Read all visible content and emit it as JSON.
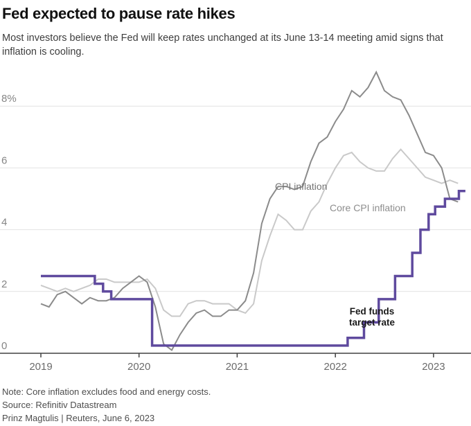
{
  "header": {
    "title": "Fed expected to pause rate hikes",
    "subtitle": "Most investors believe the Fed will keep rates unchanged at its June 13-14 meeting amid signs that inflation is cooling."
  },
  "footer": {
    "note": "Note: Core inflation excludes food and energy costs.",
    "source": "Source: Refinitiv Datastream",
    "byline": "Prinz Magtulis |  Reuters, June 6, 2023"
  },
  "chart_data": {
    "type": "line",
    "title": "Fed expected to pause rate hikes",
    "x_unit": "months since January 2019, monthly data through April-May 2023",
    "x_tick_labels": [
      "2019",
      "2020",
      "2021",
      "2022",
      "2023"
    ],
    "x_tick_months": [
      0,
      12,
      24,
      36,
      48
    ],
    "y_tick_labels": [
      "8%",
      "6",
      "4",
      "2",
      "0"
    ],
    "y_tick_values": [
      8,
      6,
      4,
      2,
      0
    ],
    "ylim": [
      0,
      9.3
    ],
    "grid": "horizontal",
    "legend_position": "inline-annotations",
    "annotations": {
      "cpi": "CPI inflation",
      "core": "Core CPI inflation",
      "fed": "Fed funds\ntarget rate"
    },
    "series": [
      {
        "name": "Core CPI inflation",
        "style": "line",
        "color": "#c9c9c9",
        "width": 2,
        "start": "Jan 2019",
        "values": [
          2.2,
          2.1,
          2.0,
          2.1,
          2.0,
          2.1,
          2.2,
          2.4,
          2.4,
          2.3,
          2.3,
          2.3,
          2.3,
          2.4,
          2.1,
          1.4,
          1.2,
          1.2,
          1.6,
          1.7,
          1.7,
          1.6,
          1.6,
          1.6,
          1.4,
          1.3,
          1.6,
          3.0,
          3.8,
          4.5,
          4.3,
          4.0,
          4.0,
          4.6,
          4.9,
          5.5,
          6.0,
          6.4,
          6.5,
          6.2,
          6.0,
          5.9,
          5.9,
          6.3,
          6.6,
          6.3,
          6.0,
          5.7,
          5.6,
          5.5,
          5.6,
          5.5
        ]
      },
      {
        "name": "CPI inflation",
        "style": "line",
        "color": "#8b8b8b",
        "width": 2,
        "start": "Jan 2019",
        "values": [
          1.6,
          1.5,
          1.9,
          2.0,
          1.8,
          1.6,
          1.8,
          1.7,
          1.7,
          1.8,
          2.1,
          2.3,
          2.5,
          2.3,
          1.5,
          0.3,
          0.1,
          0.6,
          1.0,
          1.3,
          1.4,
          1.2,
          1.2,
          1.4,
          1.4,
          1.7,
          2.6,
          4.2,
          5.0,
          5.4,
          5.4,
          5.3,
          5.4,
          6.2,
          6.8,
          7.0,
          7.5,
          7.9,
          8.5,
          8.3,
          8.6,
          9.1,
          8.5,
          8.3,
          8.2,
          7.7,
          7.1,
          6.5,
          6.4,
          6.0,
          5.0,
          4.9
        ]
      },
      {
        "name": "Fed funds target rate",
        "style": "step",
        "color": "#5f4a9e",
        "width": 3.5,
        "start": "Jan 2019",
        "end_month": 51.9,
        "points": [
          [
            0,
            2.5
          ],
          [
            6.6,
            2.25
          ],
          [
            7.6,
            2.0
          ],
          [
            8.6,
            1.75
          ],
          [
            13.6,
            0.25
          ],
          [
            37.5,
            0.5
          ],
          [
            39.5,
            1.0
          ],
          [
            41.3,
            1.75
          ],
          [
            43.3,
            2.5
          ],
          [
            45.4,
            3.25
          ],
          [
            46.4,
            4.0
          ],
          [
            47.4,
            4.5
          ],
          [
            48.2,
            4.75
          ],
          [
            49.4,
            5.0
          ],
          [
            51.1,
            5.25
          ]
        ]
      }
    ]
  }
}
